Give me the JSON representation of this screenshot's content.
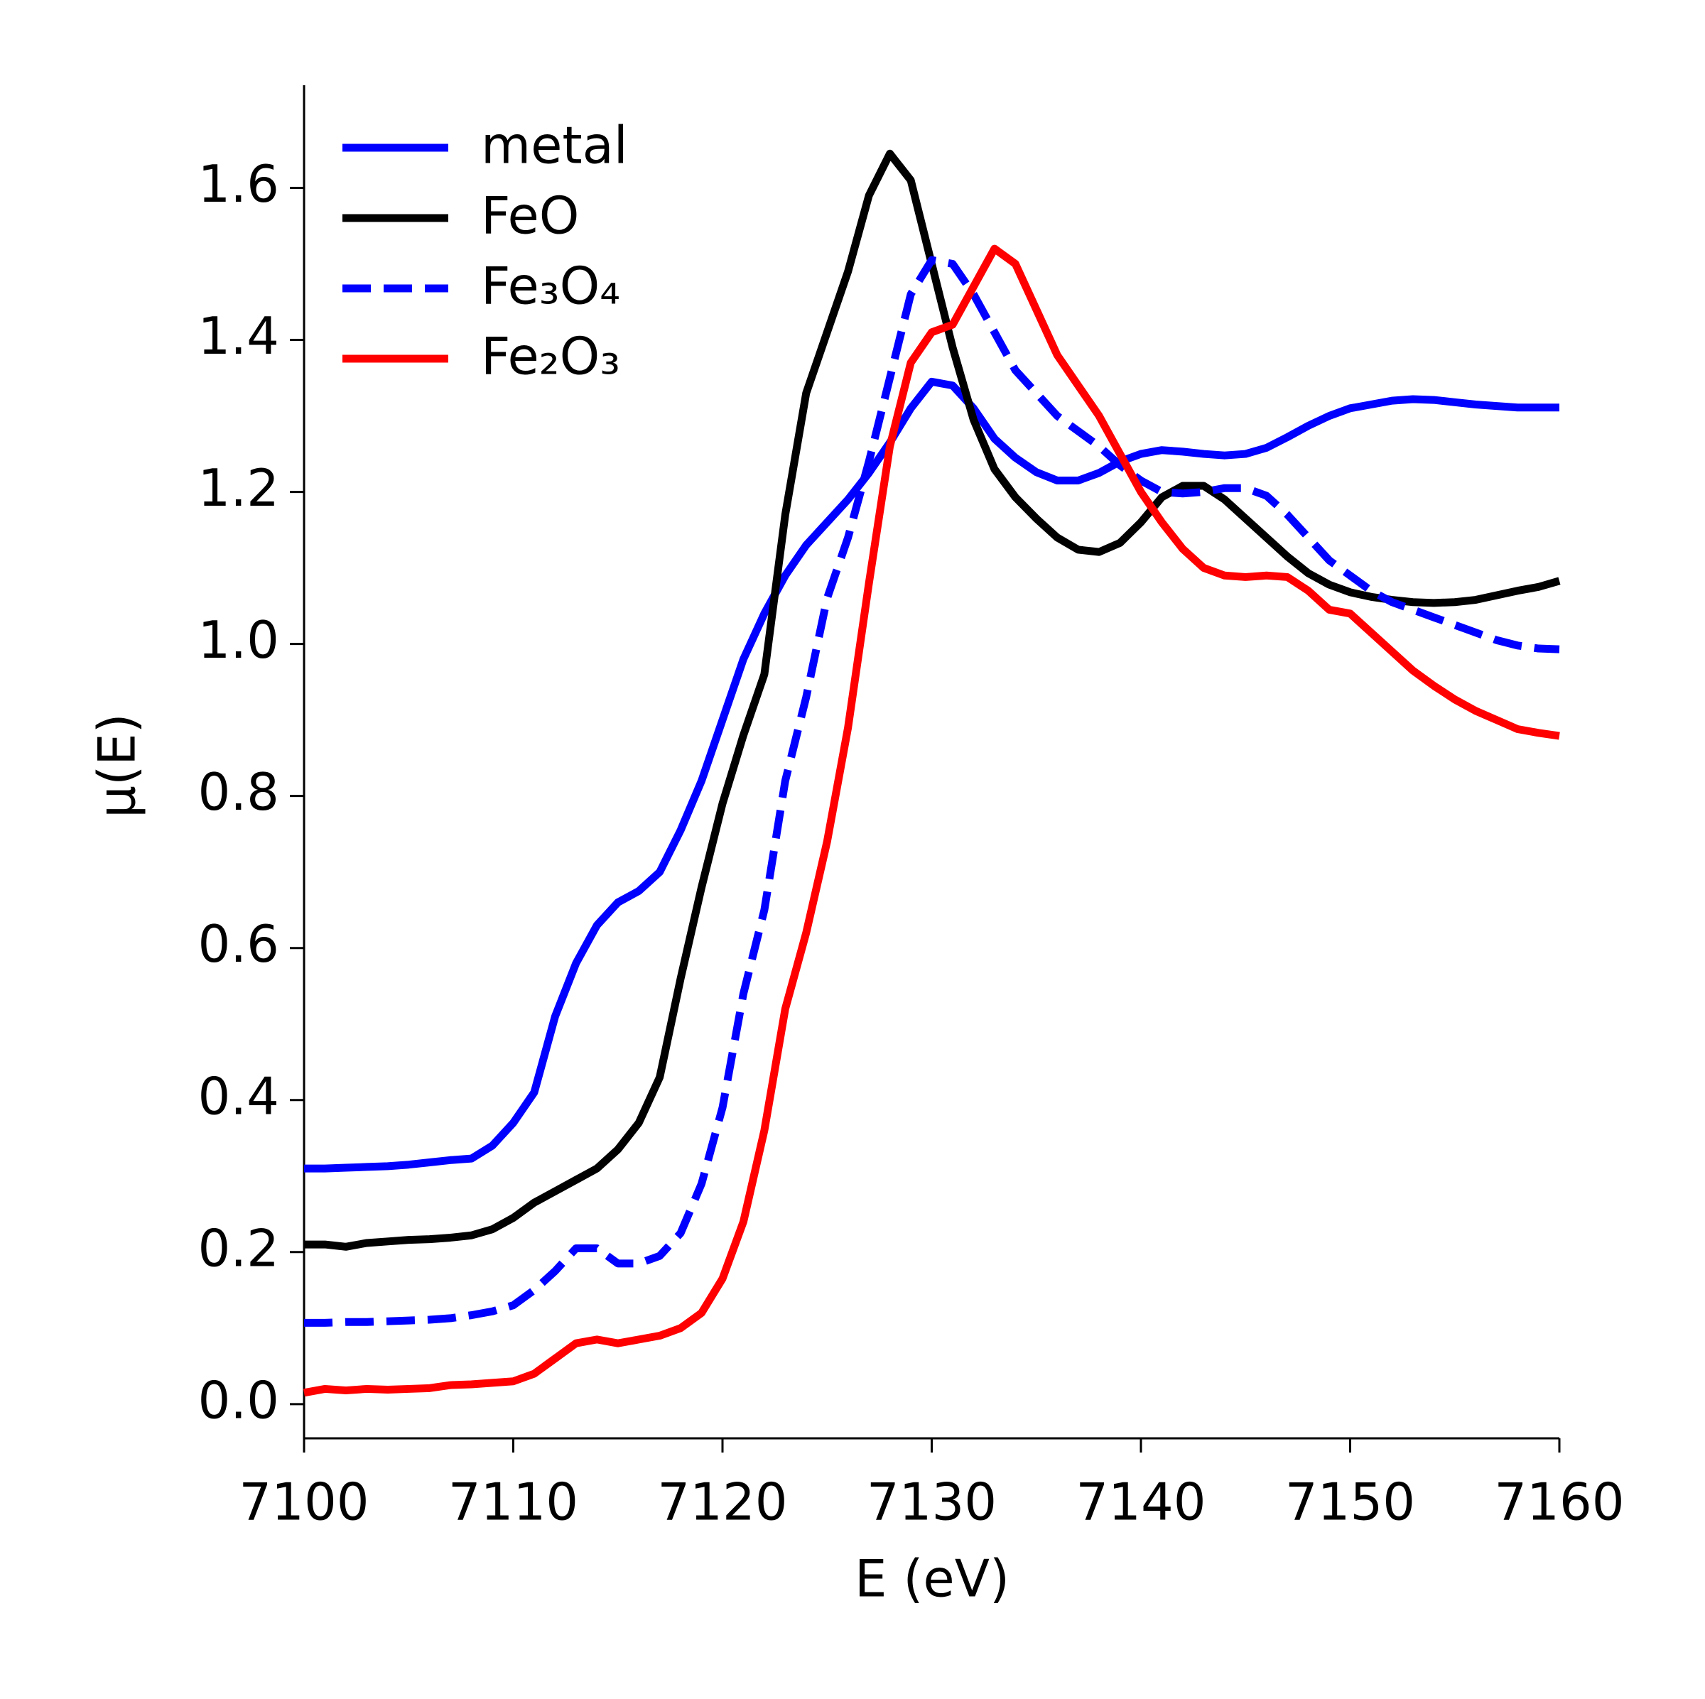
{
  "chart_data": {
    "type": "line",
    "xlabel": "E (eV)",
    "ylabel": "μ(E)",
    "x": [
      7100,
      7101,
      7102,
      7103,
      7104,
      7105,
      7106,
      7107,
      7108,
      7109,
      7110,
      7111,
      7112,
      7113,
      7114,
      7115,
      7116,
      7117,
      7118,
      7119,
      7120,
      7121,
      7122,
      7123,
      7124,
      7125,
      7126,
      7127,
      7128,
      7129,
      7130,
      7131,
      7132,
      7133,
      7134,
      7135,
      7136,
      7137,
      7138,
      7139,
      7140,
      7141,
      7142,
      7143,
      7144,
      7145,
      7146,
      7147,
      7148,
      7149,
      7150,
      7151,
      7152,
      7153,
      7154,
      7155,
      7156,
      7157,
      7158,
      7159,
      7160
    ],
    "series": [
      {
        "name": "metal",
        "color": "#0000ff",
        "linestyle": "solid",
        "values": [
          0.31,
          0.31,
          0.311,
          0.312,
          0.313,
          0.315,
          0.318,
          0.321,
          0.323,
          0.34,
          0.37,
          0.41,
          0.51,
          0.58,
          0.63,
          0.66,
          0.675,
          0.7,
          0.755,
          0.82,
          0.9,
          0.98,
          1.04,
          1.09,
          1.13,
          1.16,
          1.19,
          1.225,
          1.265,
          1.31,
          1.345,
          1.34,
          1.31,
          1.27,
          1.245,
          1.226,
          1.215,
          1.215,
          1.225,
          1.24,
          1.25,
          1.255,
          1.253,
          1.25,
          1.248,
          1.25,
          1.258,
          1.272,
          1.287,
          1.3,
          1.31,
          1.315,
          1.32,
          1.322,
          1.321,
          1.318,
          1.315,
          1.313,
          1.311,
          1.311,
          1.311
        ]
      },
      {
        "name": "FeO",
        "color": "#000000",
        "linestyle": "solid",
        "values": [
          0.21,
          0.21,
          0.207,
          0.212,
          0.214,
          0.216,
          0.217,
          0.219,
          0.222,
          0.23,
          0.245,
          0.265,
          0.28,
          0.295,
          0.31,
          0.335,
          0.37,
          0.43,
          0.56,
          0.68,
          0.79,
          0.88,
          0.96,
          1.17,
          1.33,
          1.41,
          1.49,
          1.59,
          1.645,
          1.61,
          1.5,
          1.39,
          1.295,
          1.23,
          1.193,
          1.165,
          1.14,
          1.124,
          1.121,
          1.133,
          1.16,
          1.193,
          1.208,
          1.208,
          1.19,
          1.165,
          1.14,
          1.115,
          1.093,
          1.078,
          1.068,
          1.062,
          1.058,
          1.055,
          1.054,
          1.055,
          1.058,
          1.064,
          1.07,
          1.075,
          1.083
        ]
      },
      {
        "name": "Fe₃O₄",
        "color": "#0000ff",
        "linestyle": "dashed",
        "values": [
          0.107,
          0.107,
          0.108,
          0.108,
          0.109,
          0.11,
          0.111,
          0.113,
          0.117,
          0.122,
          0.13,
          0.15,
          0.175,
          0.205,
          0.205,
          0.185,
          0.185,
          0.195,
          0.225,
          0.29,
          0.39,
          0.54,
          0.65,
          0.82,
          0.93,
          1.06,
          1.14,
          1.24,
          1.35,
          1.46,
          1.505,
          1.5,
          1.46,
          1.41,
          1.36,
          1.33,
          1.3,
          1.28,
          1.26,
          1.235,
          1.215,
          1.2,
          1.198,
          1.2,
          1.205,
          1.205,
          1.195,
          1.17,
          1.14,
          1.11,
          1.09,
          1.07,
          1.055,
          1.045,
          1.035,
          1.025,
          1.015,
          1.005,
          0.998,
          0.994,
          0.993
        ]
      },
      {
        "name": "Fe₂O₃",
        "color": "#ff0000",
        "linestyle": "solid",
        "values": [
          0.015,
          0.02,
          0.018,
          0.02,
          0.019,
          0.02,
          0.021,
          0.025,
          0.026,
          0.028,
          0.03,
          0.04,
          0.06,
          0.08,
          0.085,
          0.08,
          0.085,
          0.09,
          0.1,
          0.12,
          0.165,
          0.24,
          0.36,
          0.52,
          0.62,
          0.74,
          0.89,
          1.08,
          1.26,
          1.37,
          1.41,
          1.42,
          1.47,
          1.52,
          1.5,
          1.44,
          1.38,
          1.34,
          1.3,
          1.25,
          1.2,
          1.16,
          1.125,
          1.1,
          1.09,
          1.088,
          1.09,
          1.088,
          1.07,
          1.045,
          1.04,
          1.015,
          0.99,
          0.965,
          0.945,
          0.927,
          0.912,
          0.9,
          0.888,
          0.883,
          0.879
        ]
      }
    ],
    "xlim": [
      7100,
      7160
    ],
    "xticks": [
      7100,
      7110,
      7120,
      7130,
      7140,
      7150,
      7160
    ],
    "ylim": [
      -0.045,
      1.735
    ],
    "yticks": [
      {
        "value": 0,
        "label": "0.0"
      },
      0.2,
      0.4,
      0.6,
      0.8,
      {
        "value": 1,
        "label": "1.0"
      },
      1.2,
      1.4,
      1.6
    ],
    "legend": "upper left",
    "grid": false
  }
}
